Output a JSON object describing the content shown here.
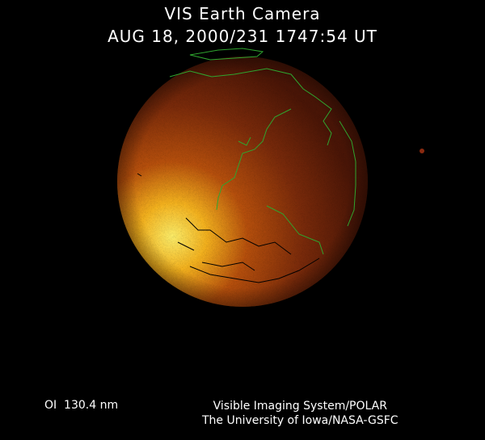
{
  "header": {
    "title": "VIS Earth Camera",
    "timestamp": "AUG 18, 2000/231 1747:54 UT"
  },
  "footer": {
    "band": "OI  130.4 nm",
    "credit_line1": "Visible Imaging System/POLAR",
    "credit_line2": "The University of Iowa/NASA-GSFC"
  },
  "colors": {
    "background": "#000000",
    "coastline": "#2fa52f",
    "aurora_bright": "#ffe85a",
    "disk_dark": "#5a1a08"
  }
}
